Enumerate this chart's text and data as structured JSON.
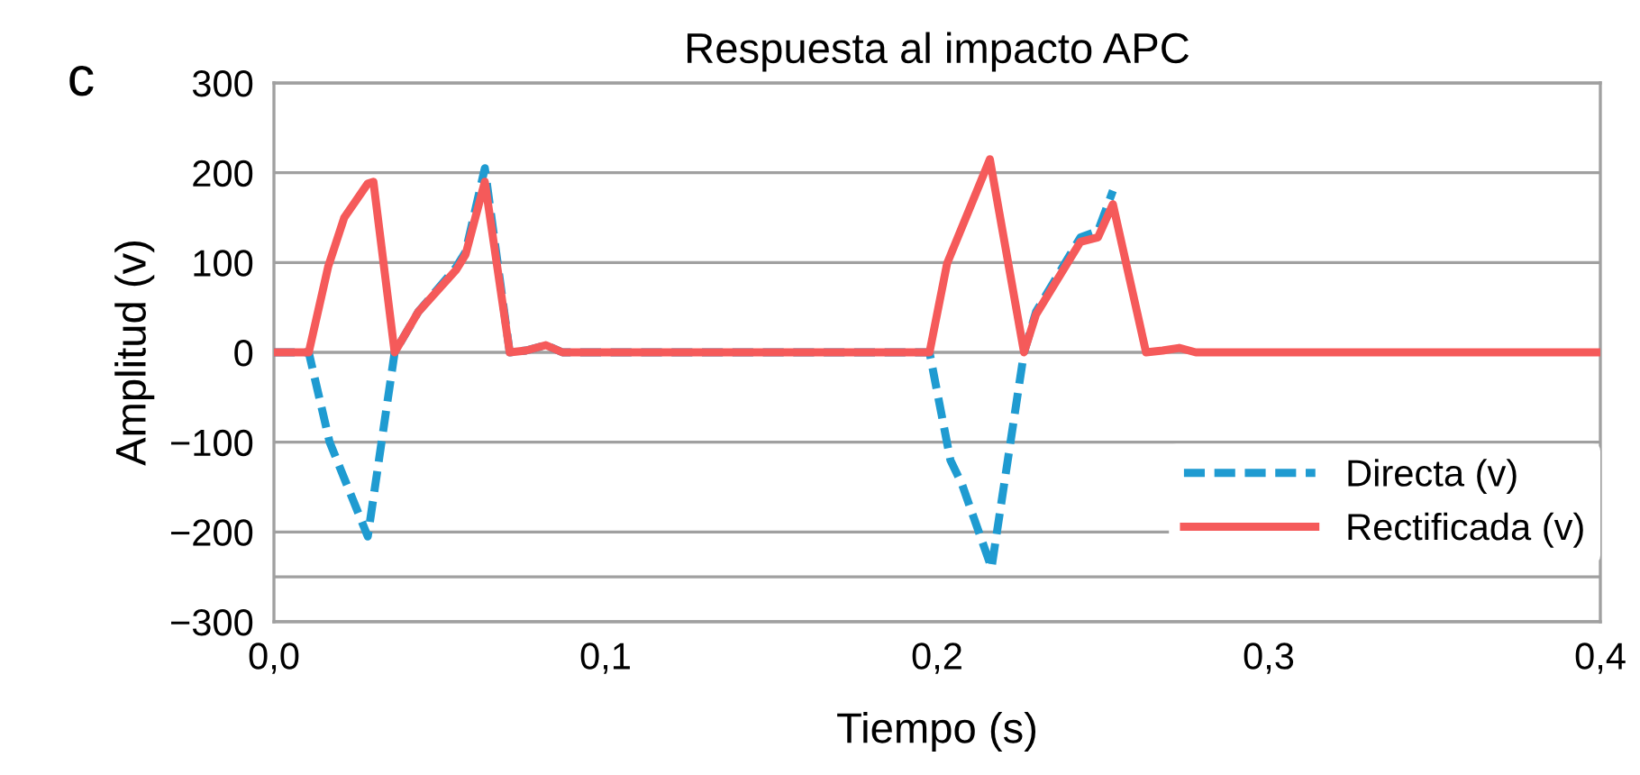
{
  "chart_data": {
    "type": "line",
    "title": "Respuesta al impacto APC",
    "xlabel": "Tiempo (s)",
    "ylabel": "Amplitud (v)",
    "annotations": [
      "c"
    ],
    "series": [
      {
        "name": "Directa (v)",
        "color": "#1f9bd1",
        "line_style": "dashed",
        "x": [
          0,
          0.0105,
          0.0168,
          0.0283,
          0.0364,
          0.0435,
          0.055,
          0.0578,
          0.0636,
          0.0711,
          0.076,
          0.082,
          0.087,
          0.1977,
          0.204,
          0.2075,
          0.2164,
          0.2262,
          0.2298,
          0.2432,
          0.2485,
          0.253
        ],
        "values": [
          0,
          0,
          -100,
          -205,
          0,
          45,
          95,
          112,
          205,
          0,
          2,
          8,
          0,
          0,
          -120,
          -147,
          -240,
          0,
          45,
          128,
          135,
          180
        ]
      },
      {
        "name": "Rectificada (v)",
        "color": "#f55a5a",
        "line_style": "solid",
        "x": [
          0,
          0.0105,
          0.0164,
          0.0212,
          0.0283,
          0.03,
          0.0364,
          0.0435,
          0.055,
          0.0578,
          0.0636,
          0.0711,
          0.076,
          0.082,
          0.087,
          0.1977,
          0.203,
          0.2159,
          0.2262,
          0.2298,
          0.2432,
          0.2485,
          0.253,
          0.263,
          0.268,
          0.273,
          0.278,
          0.4
        ],
        "values": [
          0,
          0,
          96,
          150,
          188,
          190,
          0,
          45,
          92,
          109,
          190,
          0,
          2,
          8,
          0,
          0,
          99,
          215,
          0,
          42,
          123,
          128,
          165,
          0,
          2,
          5,
          0,
          0
        ]
      }
    ],
    "xlim": [
      0,
      0.4
    ],
    "xticks": [
      {
        "value": 0,
        "label": "0,0"
      },
      {
        "value": 0.1,
        "label": "0,1"
      },
      {
        "value": 0.2,
        "label": "0,2"
      },
      {
        "value": 0.3,
        "label": "0,3"
      },
      {
        "value": 0.4,
        "label": "0,4"
      }
    ],
    "ylim": [
      -300,
      300
    ],
    "yticks": [
      -300,
      -200,
      -100,
      0,
      100,
      200,
      300,
      {
        "value": -250,
        "label": null
      }
    ],
    "grid": "y",
    "legend": "right",
    "marker": "none"
  }
}
